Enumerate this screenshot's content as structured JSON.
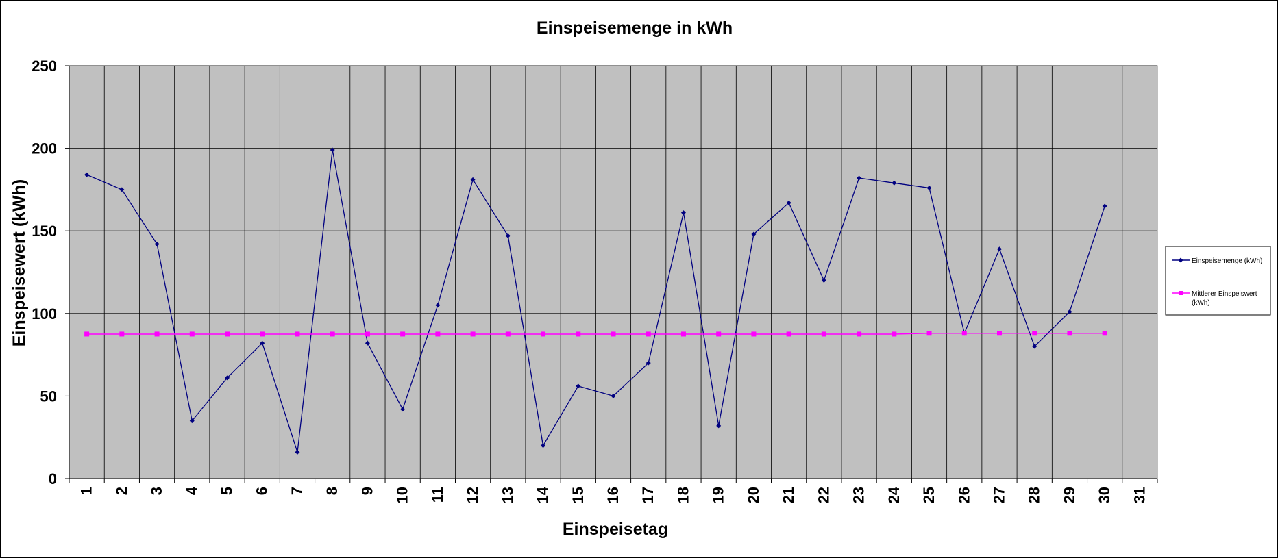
{
  "chart_data": {
    "type": "line",
    "title": "Einspeisemenge in kWh",
    "xlabel": "Einspeisetag",
    "ylabel": "Einspeisewert  (kWh)",
    "ylim": [
      0,
      250
    ],
    "yticks": [
      "0",
      "50",
      "100",
      "150",
      "200",
      "250"
    ],
    "categories": [
      "1",
      "2",
      "3",
      "4",
      "5",
      "6",
      "7",
      "8",
      "9",
      "10",
      "11",
      "12",
      "13",
      "14",
      "15",
      "16",
      "17",
      "18",
      "19",
      "20",
      "21",
      "22",
      "23",
      "24",
      "25",
      "26",
      "27",
      "28",
      "29",
      "30",
      "31"
    ],
    "grid": true,
    "legend_position": "right",
    "plot_background": "#c0c0c0",
    "series": [
      {
        "name": "Einspeisemenge (kWh)",
        "color": "#000080",
        "marker": "diamond",
        "values": [
          184,
          175,
          142,
          35,
          61,
          82,
          16,
          199,
          82,
          42,
          105,
          181,
          147,
          20,
          56,
          50,
          70,
          161,
          32,
          148,
          167,
          120,
          182,
          179,
          176,
          88,
          139,
          80,
          101,
          165,
          null
        ]
      },
      {
        "name": "Mittlerer Einspeiswert (kWh)",
        "color": "#ff00ff",
        "marker": "square",
        "values": [
          87.5,
          87.5,
          87.5,
          87.5,
          87.5,
          87.5,
          87.5,
          87.5,
          87.5,
          87.5,
          87.5,
          87.5,
          87.5,
          87.5,
          87.5,
          87.5,
          87.5,
          87.5,
          87.5,
          87.5,
          87.5,
          87.5,
          87.5,
          87.5,
          88,
          88,
          88,
          88,
          88,
          88,
          null
        ]
      }
    ]
  }
}
